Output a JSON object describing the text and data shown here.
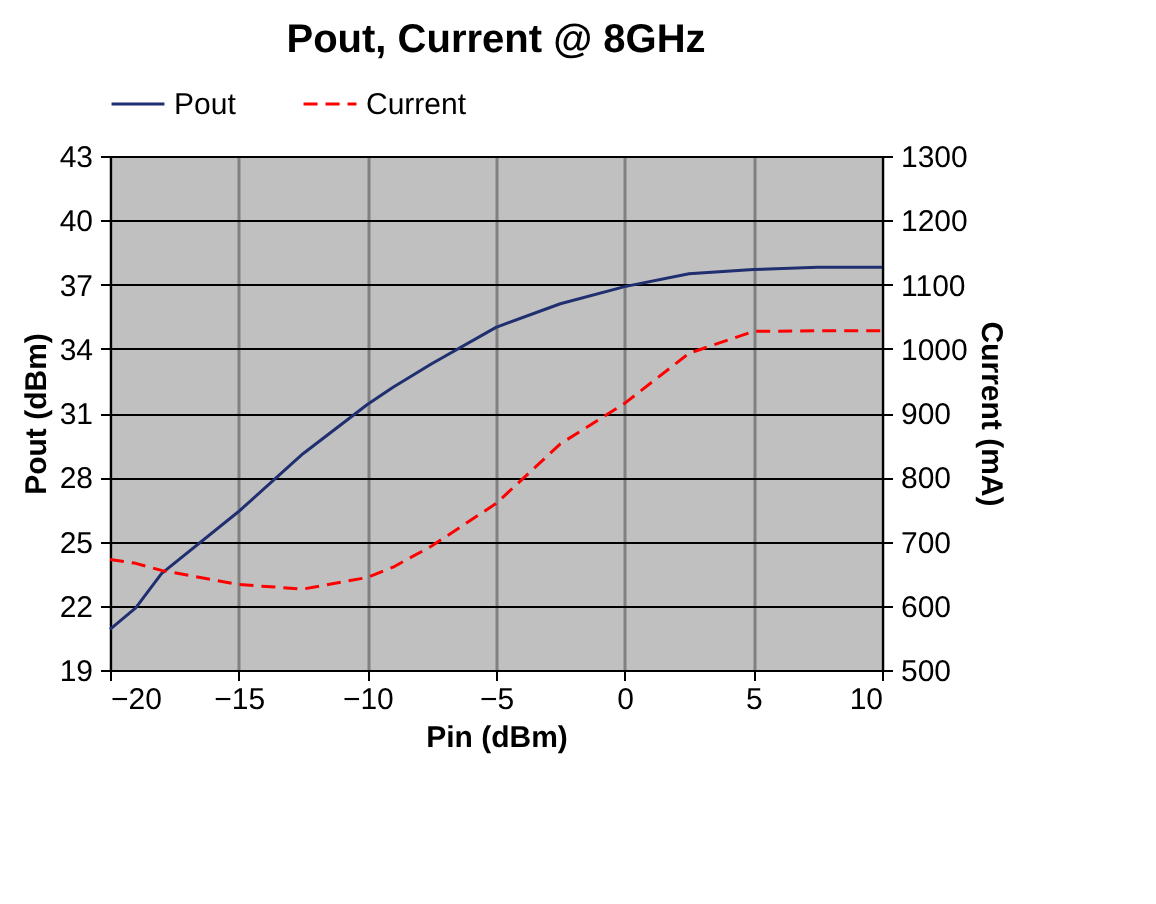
{
  "chart_data": {
    "type": "line",
    "title": "Pout, Current @ 8GHz",
    "xlabel": "Pin (dBm)",
    "ylabel": "Pout  (dBm)",
    "y2label": "Current (mA)",
    "x": [
      -20,
      -19,
      -18,
      -15,
      -12.5,
      -10,
      -9,
      -7.5,
      -5,
      -2.5,
      0,
      2.5,
      5,
      7.5,
      10
    ],
    "series": [
      {
        "name": "Pout",
        "color": "#1f2f6f",
        "line_style": "solid",
        "values": [
          20.9,
          21.9,
          23.5,
          26.4,
          29.1,
          31.4,
          32.2,
          33.3,
          35.0,
          36.1,
          36.9,
          37.5,
          37.7,
          37.8,
          37.8
        ]
      },
      {
        "name": "Current",
        "color": "#ff0000",
        "line_style": "dashed",
        "axis": "y2",
        "values": [
          672,
          666,
          655,
          633,
          626,
          644,
          660,
          693,
          759,
          852,
          915,
          993,
          1027,
          1028,
          1028
        ]
      }
    ],
    "xlim": [
      -20,
      10
    ],
    "xticks": [
      -20,
      -15,
      -10,
      -5,
      0,
      5,
      10
    ],
    "ylim": [
      19,
      43
    ],
    "yticks": [
      19,
      22,
      25,
      28,
      31,
      34,
      37,
      40,
      43
    ],
    "y2lim": [
      500,
      1300
    ],
    "y2ticks": [
      500,
      600,
      700,
      800,
      900,
      1000,
      1100,
      1200,
      1300
    ],
    "grid": true,
    "legend": "top"
  }
}
